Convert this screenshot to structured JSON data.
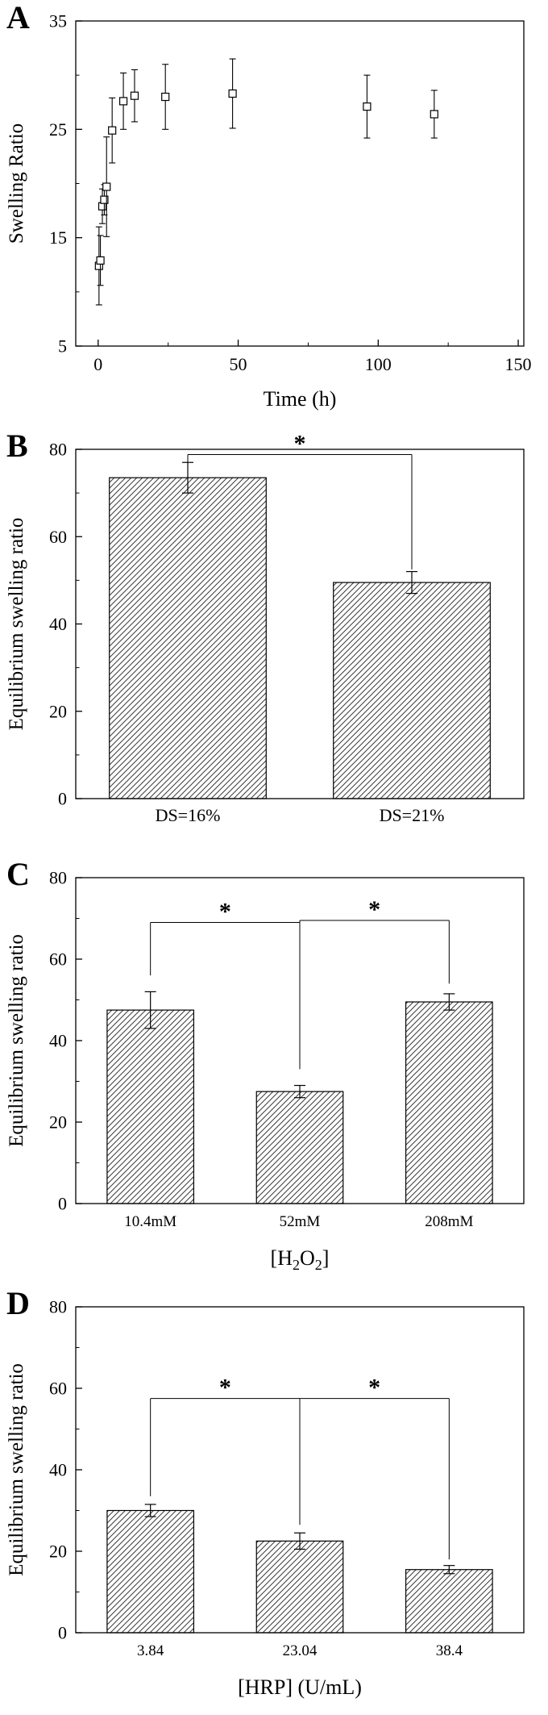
{
  "figure": {
    "background": "#ffffff",
    "text_color": "#000000"
  },
  "panels": [
    {
      "label": "A",
      "chart_data": {
        "type": "scatter",
        "marker": "open-square",
        "title": "",
        "xlabel": "Time (h)",
        "ylabel": "Swelling Ratio",
        "xlim": [
          -8,
          152
        ],
        "ylim": [
          5,
          35
        ],
        "xticks": [
          0,
          50,
          100,
          150
        ],
        "yticks": [
          5,
          15,
          25,
          35
        ],
        "xticks_minor": [
          25,
          75,
          125
        ],
        "yticks_minor": [
          10,
          20,
          30
        ],
        "grid": false,
        "points": [
          {
            "x": 0.3,
            "y": 12.4,
            "err": 3.6
          },
          {
            "x": 0.8,
            "y": 12.9,
            "err": 2.3
          },
          {
            "x": 1.5,
            "y": 17.9,
            "err": 1.6
          },
          {
            "x": 2.2,
            "y": 18.5,
            "err": 1.4
          },
          {
            "x": 3.0,
            "y": 19.7,
            "err": 4.6
          },
          {
            "x": 5.0,
            "y": 24.9,
            "err": 3.0
          },
          {
            "x": 9.0,
            "y": 27.6,
            "err": 2.6
          },
          {
            "x": 13.0,
            "y": 28.1,
            "err": 2.4
          },
          {
            "x": 24.0,
            "y": 28.0,
            "err": 3.0
          },
          {
            "x": 48.0,
            "y": 28.3,
            "err": 3.2
          },
          {
            "x": 96.0,
            "y": 27.1,
            "err": 2.9
          },
          {
            "x": 120.0,
            "y": 26.4,
            "err": 2.2
          }
        ]
      }
    },
    {
      "label": "B",
      "chart_data": {
        "type": "bar",
        "title": "",
        "categories": [
          "DS=16%",
          "DS=21%"
        ],
        "values": [
          73.5,
          49.5
        ],
        "errors": [
          3.5,
          2.5
        ],
        "ylabel": "Equilibrium swelling ratio",
        "ylim": [
          0,
          80
        ],
        "yticks": [
          0,
          20,
          40,
          60,
          80
        ],
        "yticks_minor": [
          10,
          30,
          50,
          70
        ],
        "grid": false,
        "bar_style": "diagonal-hatch",
        "significance": [
          {
            "from": 0,
            "to": 1,
            "y": 78.8,
            "drop_to": [
              77.0,
              52.5
            ],
            "label": "*"
          }
        ]
      }
    },
    {
      "label": "C",
      "chart_data": {
        "type": "bar",
        "title": "",
        "categories": [
          "10.4mM",
          "52mM",
          "208mM"
        ],
        "values": [
          47.5,
          27.5,
          49.5
        ],
        "errors": [
          4.5,
          1.5,
          2.0
        ],
        "xlabel": "[H2O2]",
        "xlabel_parts": [
          {
            "t": "[H"
          },
          {
            "t": "2",
            "sub": true
          },
          {
            "t": "O"
          },
          {
            "t": "2",
            "sub": true
          },
          {
            "t": "]"
          }
        ],
        "ylabel": "Equilibrium swelling ratio",
        "ylim": [
          0,
          80
        ],
        "yticks": [
          0,
          20,
          40,
          60,
          80
        ],
        "yticks_minor": [
          10,
          30,
          50,
          70
        ],
        "grid": false,
        "bar_style": "diagonal-hatch",
        "significance": [
          {
            "from": 0,
            "to": 1,
            "y": 69.0,
            "drop_to": [
              56.0,
              33.0
            ],
            "label": "*"
          },
          {
            "from": 1,
            "to": 2,
            "y": 69.5,
            "drop_to": [
              33.5,
              54.0
            ],
            "label": "*"
          }
        ]
      }
    },
    {
      "label": "D",
      "chart_data": {
        "type": "bar",
        "title": "",
        "categories": [
          "3.84",
          "23.04",
          "38.4"
        ],
        "values": [
          30.0,
          22.5,
          15.5
        ],
        "errors": [
          1.5,
          2.0,
          1.0
        ],
        "xlabel": "[HRP] (U/mL)",
        "ylabel": "Equilibrium swelling ratio",
        "ylim": [
          0,
          80
        ],
        "yticks": [
          0,
          20,
          40,
          60,
          80
        ],
        "yticks_minor": [
          10,
          30,
          50,
          70
        ],
        "grid": false,
        "bar_style": "diagonal-hatch",
        "significance": [
          {
            "from": 0,
            "to": 1,
            "y": 57.5,
            "drop_to": [
              33.5,
              26.5
            ],
            "label": "*"
          },
          {
            "from": 1,
            "to": 2,
            "y": 57.5,
            "drop_to": [
              26.5,
              18.0
            ],
            "label": "*"
          }
        ]
      }
    }
  ]
}
